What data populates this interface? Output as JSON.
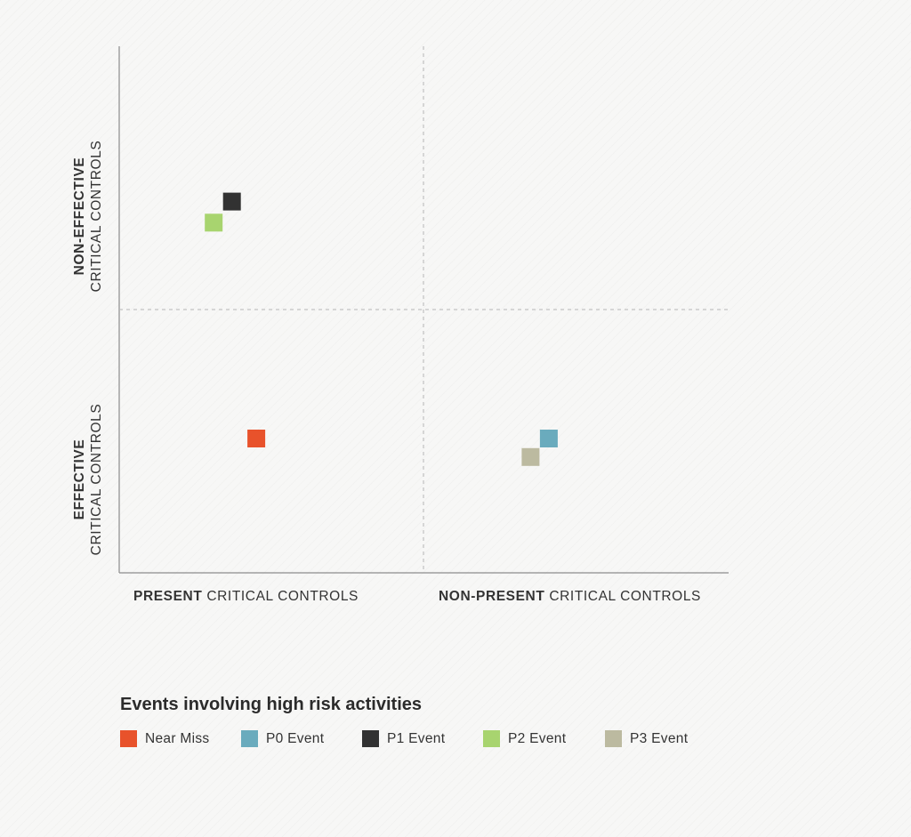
{
  "chart_data": {
    "type": "scatter",
    "title": "",
    "x_categories": [
      {
        "bold": "PRESENT",
        "normal": " CRITICAL CONTROLS"
      },
      {
        "bold": "NON-PRESENT",
        "normal": " CRITICAL CONTROLS"
      }
    ],
    "y_categories": [
      {
        "bold": "NON-EFFECTIVE",
        "normal": "CRITICAL CONTROLS"
      },
      {
        "bold": "EFFECTIVE",
        "normal": "CRITICAL CONTROLS"
      }
    ],
    "xlim": [
      0,
      2
    ],
    "ylim": [
      0,
      2
    ],
    "grid": false,
    "quadrant_dividers": {
      "x": 1,
      "y": 1,
      "style": "dashed"
    },
    "series": [
      {
        "name": "Near Miss",
        "color": "#e8522b",
        "x": 0.45,
        "y": 0.51
      },
      {
        "name": "P0 Event",
        "color": "#6aabbd",
        "x": 1.41,
        "y": 0.51
      },
      {
        "name": "P1 Event",
        "color": "#323232",
        "x": 0.37,
        "y": 1.41
      },
      {
        "name": "P2 Event",
        "color": "#a8d46f",
        "x": 0.31,
        "y": 1.33
      },
      {
        "name": "P3 Event",
        "color": "#bcbaa0",
        "x": 1.35,
        "y": 0.44
      }
    ],
    "legend": {
      "title": "Events involving high risk activities",
      "position": "bottom-left"
    }
  }
}
